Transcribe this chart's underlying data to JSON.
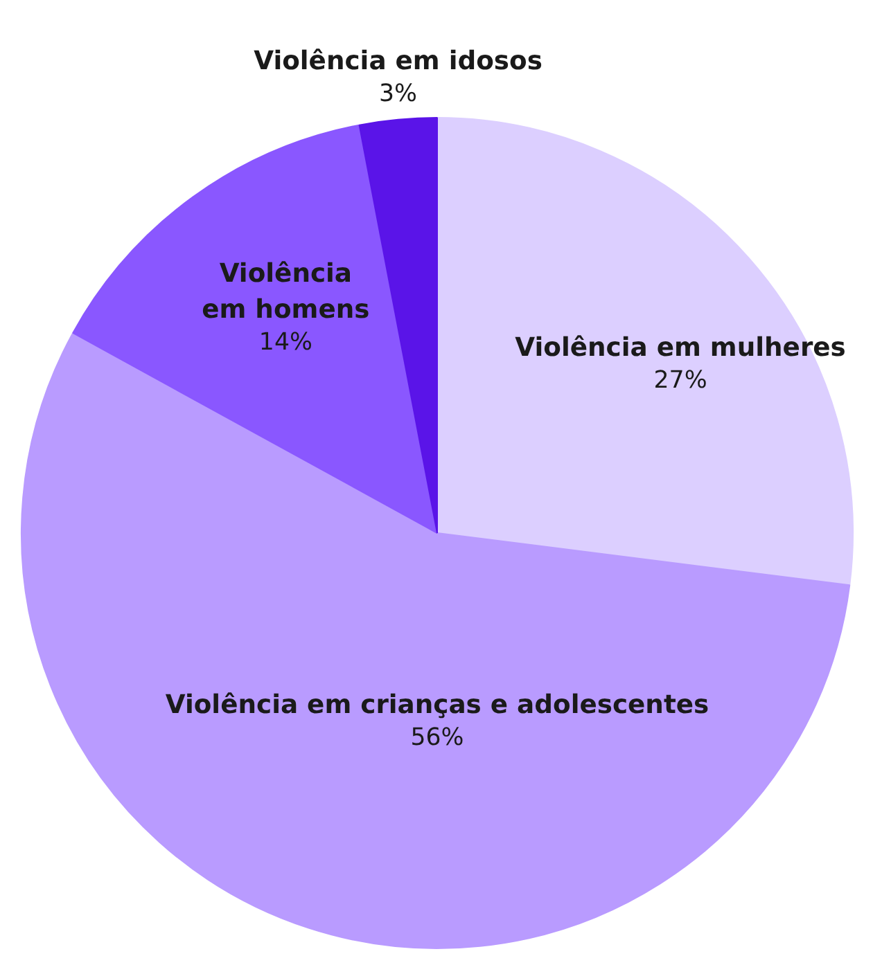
{
  "chart_data": {
    "type": "pie",
    "categories": [
      "Violência em mulheres",
      "Violência em crianças e adolescentes",
      "Violência em homens",
      "Violência em idosos"
    ],
    "values": [
      27,
      56,
      14,
      3
    ],
    "colors": [
      "#dccfff",
      "#b99bff",
      "#8a57ff",
      "#5a14e8"
    ],
    "value_labels": [
      "27%",
      "56%",
      "14%",
      "3%"
    ]
  }
}
